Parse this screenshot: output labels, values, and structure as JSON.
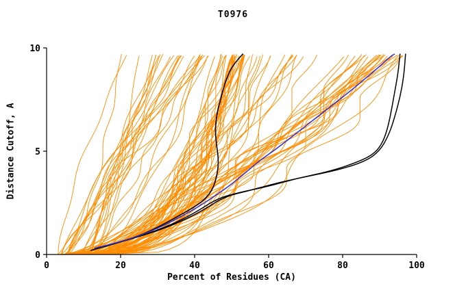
{
  "chart_data": {
    "type": "line",
    "title": "T0976",
    "xlabel": "Percent of Residues (CA)",
    "ylabel": "Distance Cutoff, A",
    "xlim": [
      0,
      100
    ],
    "ylim": [
      0,
      10
    ],
    "x_ticks": [
      0,
      20,
      40,
      60,
      80,
      100
    ],
    "y_ticks": [
      0,
      5,
      10
    ],
    "grid": false,
    "legend": "none",
    "colors": {
      "ensemble": "#FF8C00",
      "highlight": "#000000",
      "reference": "#3030CC"
    },
    "series": [
      {
        "name": "black-curve-center",
        "color": "#000000",
        "width": 1.6,
        "points": [
          [
            12,
            0.2
          ],
          [
            18,
            0.5
          ],
          [
            25,
            0.9
          ],
          [
            31,
            1.4
          ],
          [
            36,
            1.9
          ],
          [
            40,
            2.3
          ],
          [
            43,
            2.7
          ],
          [
            45,
            3.2
          ],
          [
            46,
            3.8
          ],
          [
            46.5,
            4.5
          ],
          [
            46,
            5.2
          ],
          [
            45.5,
            6.0
          ],
          [
            46,
            6.8
          ],
          [
            47,
            7.5
          ],
          [
            48,
            8.2
          ],
          [
            49.5,
            8.9
          ],
          [
            51,
            9.3
          ],
          [
            53,
            9.7
          ]
        ]
      },
      {
        "name": "black-curve-right-1",
        "color": "#000000",
        "width": 1.5,
        "points": [
          [
            13,
            0.3
          ],
          [
            22,
            0.7
          ],
          [
            32,
            1.3
          ],
          [
            40,
            2.0
          ],
          [
            46,
            2.7
          ],
          [
            52,
            3.0
          ],
          [
            60,
            3.3
          ],
          [
            68,
            3.7
          ],
          [
            76,
            4.0
          ],
          [
            83,
            4.4
          ],
          [
            88,
            4.8
          ],
          [
            90.5,
            5.3
          ],
          [
            92,
            6.0
          ],
          [
            93,
            6.8
          ],
          [
            94,
            7.8
          ],
          [
            95,
            8.8
          ],
          [
            95.5,
            9.7
          ]
        ]
      },
      {
        "name": "black-curve-right-2",
        "color": "#000000",
        "width": 1.5,
        "points": [
          [
            14,
            0.3
          ],
          [
            24,
            0.8
          ],
          [
            34,
            1.4
          ],
          [
            42,
            2.1
          ],
          [
            48,
            2.8
          ],
          [
            55,
            3.1
          ],
          [
            63,
            3.5
          ],
          [
            71,
            3.8
          ],
          [
            79,
            4.1
          ],
          [
            86,
            4.5
          ],
          [
            90,
            5.0
          ],
          [
            92.5,
            5.8
          ],
          [
            94,
            6.6
          ],
          [
            95.5,
            7.6
          ],
          [
            96.5,
            8.6
          ],
          [
            97,
            9.7
          ]
        ]
      },
      {
        "name": "blue-curve",
        "color": "#3030CC",
        "width": 1.5,
        "points": [
          [
            13,
            0.3
          ],
          [
            20,
            0.6
          ],
          [
            28,
            1.1
          ],
          [
            35,
            1.7
          ],
          [
            41,
            2.3
          ],
          [
            46,
            2.9
          ],
          [
            50,
            3.4
          ],
          [
            54,
            4.0
          ],
          [
            58,
            4.6
          ],
          [
            62,
            5.1
          ],
          [
            67,
            5.8
          ],
          [
            72,
            6.5
          ],
          [
            77,
            7.2
          ],
          [
            82,
            7.9
          ],
          [
            86,
            8.5
          ],
          [
            90,
            9.1
          ],
          [
            93,
            9.6
          ],
          [
            94,
            9.7
          ]
        ]
      }
    ],
    "orange_ensemble": {
      "color": "#FF8C00",
      "seed": 7,
      "y_top": 9.7,
      "clusters": [
        {
          "count": 24,
          "x0": [
            3,
            14
          ],
          "xtop": [
            20,
            46
          ],
          "rise": [
            0.6,
            1.4
          ]
        },
        {
          "count": 34,
          "x0": [
            4,
            15
          ],
          "xtop": [
            43,
            58
          ],
          "rise": [
            0.22,
            0.55
          ]
        },
        {
          "count": 14,
          "x0": [
            4,
            15
          ],
          "xtop": [
            58,
            84
          ],
          "rise": [
            0.35,
            0.8
          ]
        },
        {
          "count": 22,
          "x0": [
            4,
            15
          ],
          "xtop": [
            84,
            97
          ],
          "rise": [
            0.4,
            0.9
          ]
        }
      ]
    }
  }
}
